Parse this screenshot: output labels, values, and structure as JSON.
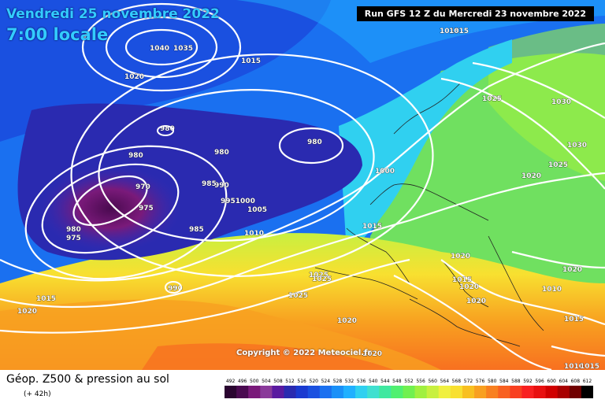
{
  "header": {
    "date": "Vendredi 25 novembre 2022",
    "time": "7:00 locale",
    "run": "Run GFS 12 Z du Mercredi 23 novembre 2022"
  },
  "copyright": "Copyright © 2022 Meteociel.fr",
  "legend": {
    "title": "Géop. Z500 & pression au sol",
    "subtitle": "(+ 42h)",
    "scale_values": [
      "492",
      "496",
      "500",
      "504",
      "508",
      "512",
      "516",
      "520",
      "524",
      "528",
      "532",
      "536",
      "540",
      "544",
      "548",
      "552",
      "556",
      "560",
      "564",
      "568",
      "572",
      "576",
      "580",
      "584",
      "588",
      "592",
      "596",
      "600",
      "604",
      "608",
      "612"
    ],
    "scale_colors": [
      "#2a0530",
      "#4a0a50",
      "#7a1a7a",
      "#8a3a9a",
      "#5a1aa0",
      "#2a2ab0",
      "#1a3ad0",
      "#1a50e0",
      "#1a70f0",
      "#1a90f8",
      "#20b0ff",
      "#30d0f0",
      "#40e0d0",
      "#40e8a0",
      "#50f070",
      "#70f050",
      "#a0f040",
      "#c8f040",
      "#f0f040",
      "#f8e030",
      "#f8c020",
      "#f8a020",
      "#f88020",
      "#f86020",
      "#f84020",
      "#f82020",
      "#e81010",
      "#d00000",
      "#a80000",
      "#700000",
      "#000000"
    ]
  },
  "isobars": [
    {
      "label": "1020",
      "kind": "pressure"
    },
    {
      "label": "1025",
      "kind": "pressure"
    },
    {
      "label": "1040",
      "kind": "pressure"
    },
    {
      "label": "1035",
      "kind": "pressure"
    },
    {
      "label": "1015",
      "kind": "pressure"
    },
    {
      "label": "1015",
      "kind": "pressure"
    },
    {
      "label": "1015",
      "kind": "pressure"
    },
    {
      "label": "1020",
      "kind": "pressure"
    },
    {
      "label": "1025",
      "kind": "pressure"
    },
    {
      "label": "1030",
      "kind": "pressure"
    },
    {
      "label": "1030",
      "kind": "pressure"
    },
    {
      "label": "1025",
      "kind": "pressure"
    },
    {
      "label": "1020",
      "kind": "pressure"
    },
    {
      "label": "980",
      "kind": "pressure"
    },
    {
      "label": "980",
      "kind": "pressure"
    },
    {
      "label": "980",
      "kind": "pressure"
    },
    {
      "label": "980",
      "kind": "pressure"
    },
    {
      "label": "1000",
      "kind": "pressure"
    },
    {
      "label": "970",
      "kind": "pressure"
    },
    {
      "label": "975",
      "kind": "pressure"
    },
    {
      "label": "985",
      "kind": "pressure"
    },
    {
      "label": "990",
      "kind": "pressure"
    },
    {
      "label": "9951000",
      "kind": "pressure"
    },
    {
      "label": "1005",
      "kind": "pressure"
    },
    {
      "label": "980",
      "kind": "pressure"
    },
    {
      "label": "975",
      "kind": "pressure"
    },
    {
      "label": "985",
      "kind": "pressure"
    },
    {
      "label": "1010",
      "kind": "pressure"
    },
    {
      "label": "1015",
      "kind": "pressure"
    },
    {
      "label": "1020",
      "kind": "pressure"
    },
    {
      "label": "990",
      "kind": "pressure"
    },
    {
      "label": "1025",
      "kind": "pressure"
    },
    {
      "label": "1025",
      "kind": "pressure"
    },
    {
      "label": "1015",
      "kind": "pressure"
    },
    {
      "label": "1020",
      "kind": "pressure"
    },
    {
      "label": "1020",
      "kind": "pressure"
    },
    {
      "label": "1020",
      "kind": "pressure"
    },
    {
      "label": "1020",
      "kind": "pressure"
    },
    {
      "label": "1020",
      "kind": "pressure"
    },
    {
      "label": "1010",
      "kind": "pressure"
    },
    {
      "label": "1015",
      "kind": "pressure"
    },
    {
      "label": "1010",
      "kind": "pressure"
    },
    {
      "label": "1015",
      "kind": "pressure"
    },
    {
      "label": "1015",
      "kind": "pressure"
    },
    {
      "label": "1020",
      "kind": "pressure"
    }
  ]
}
